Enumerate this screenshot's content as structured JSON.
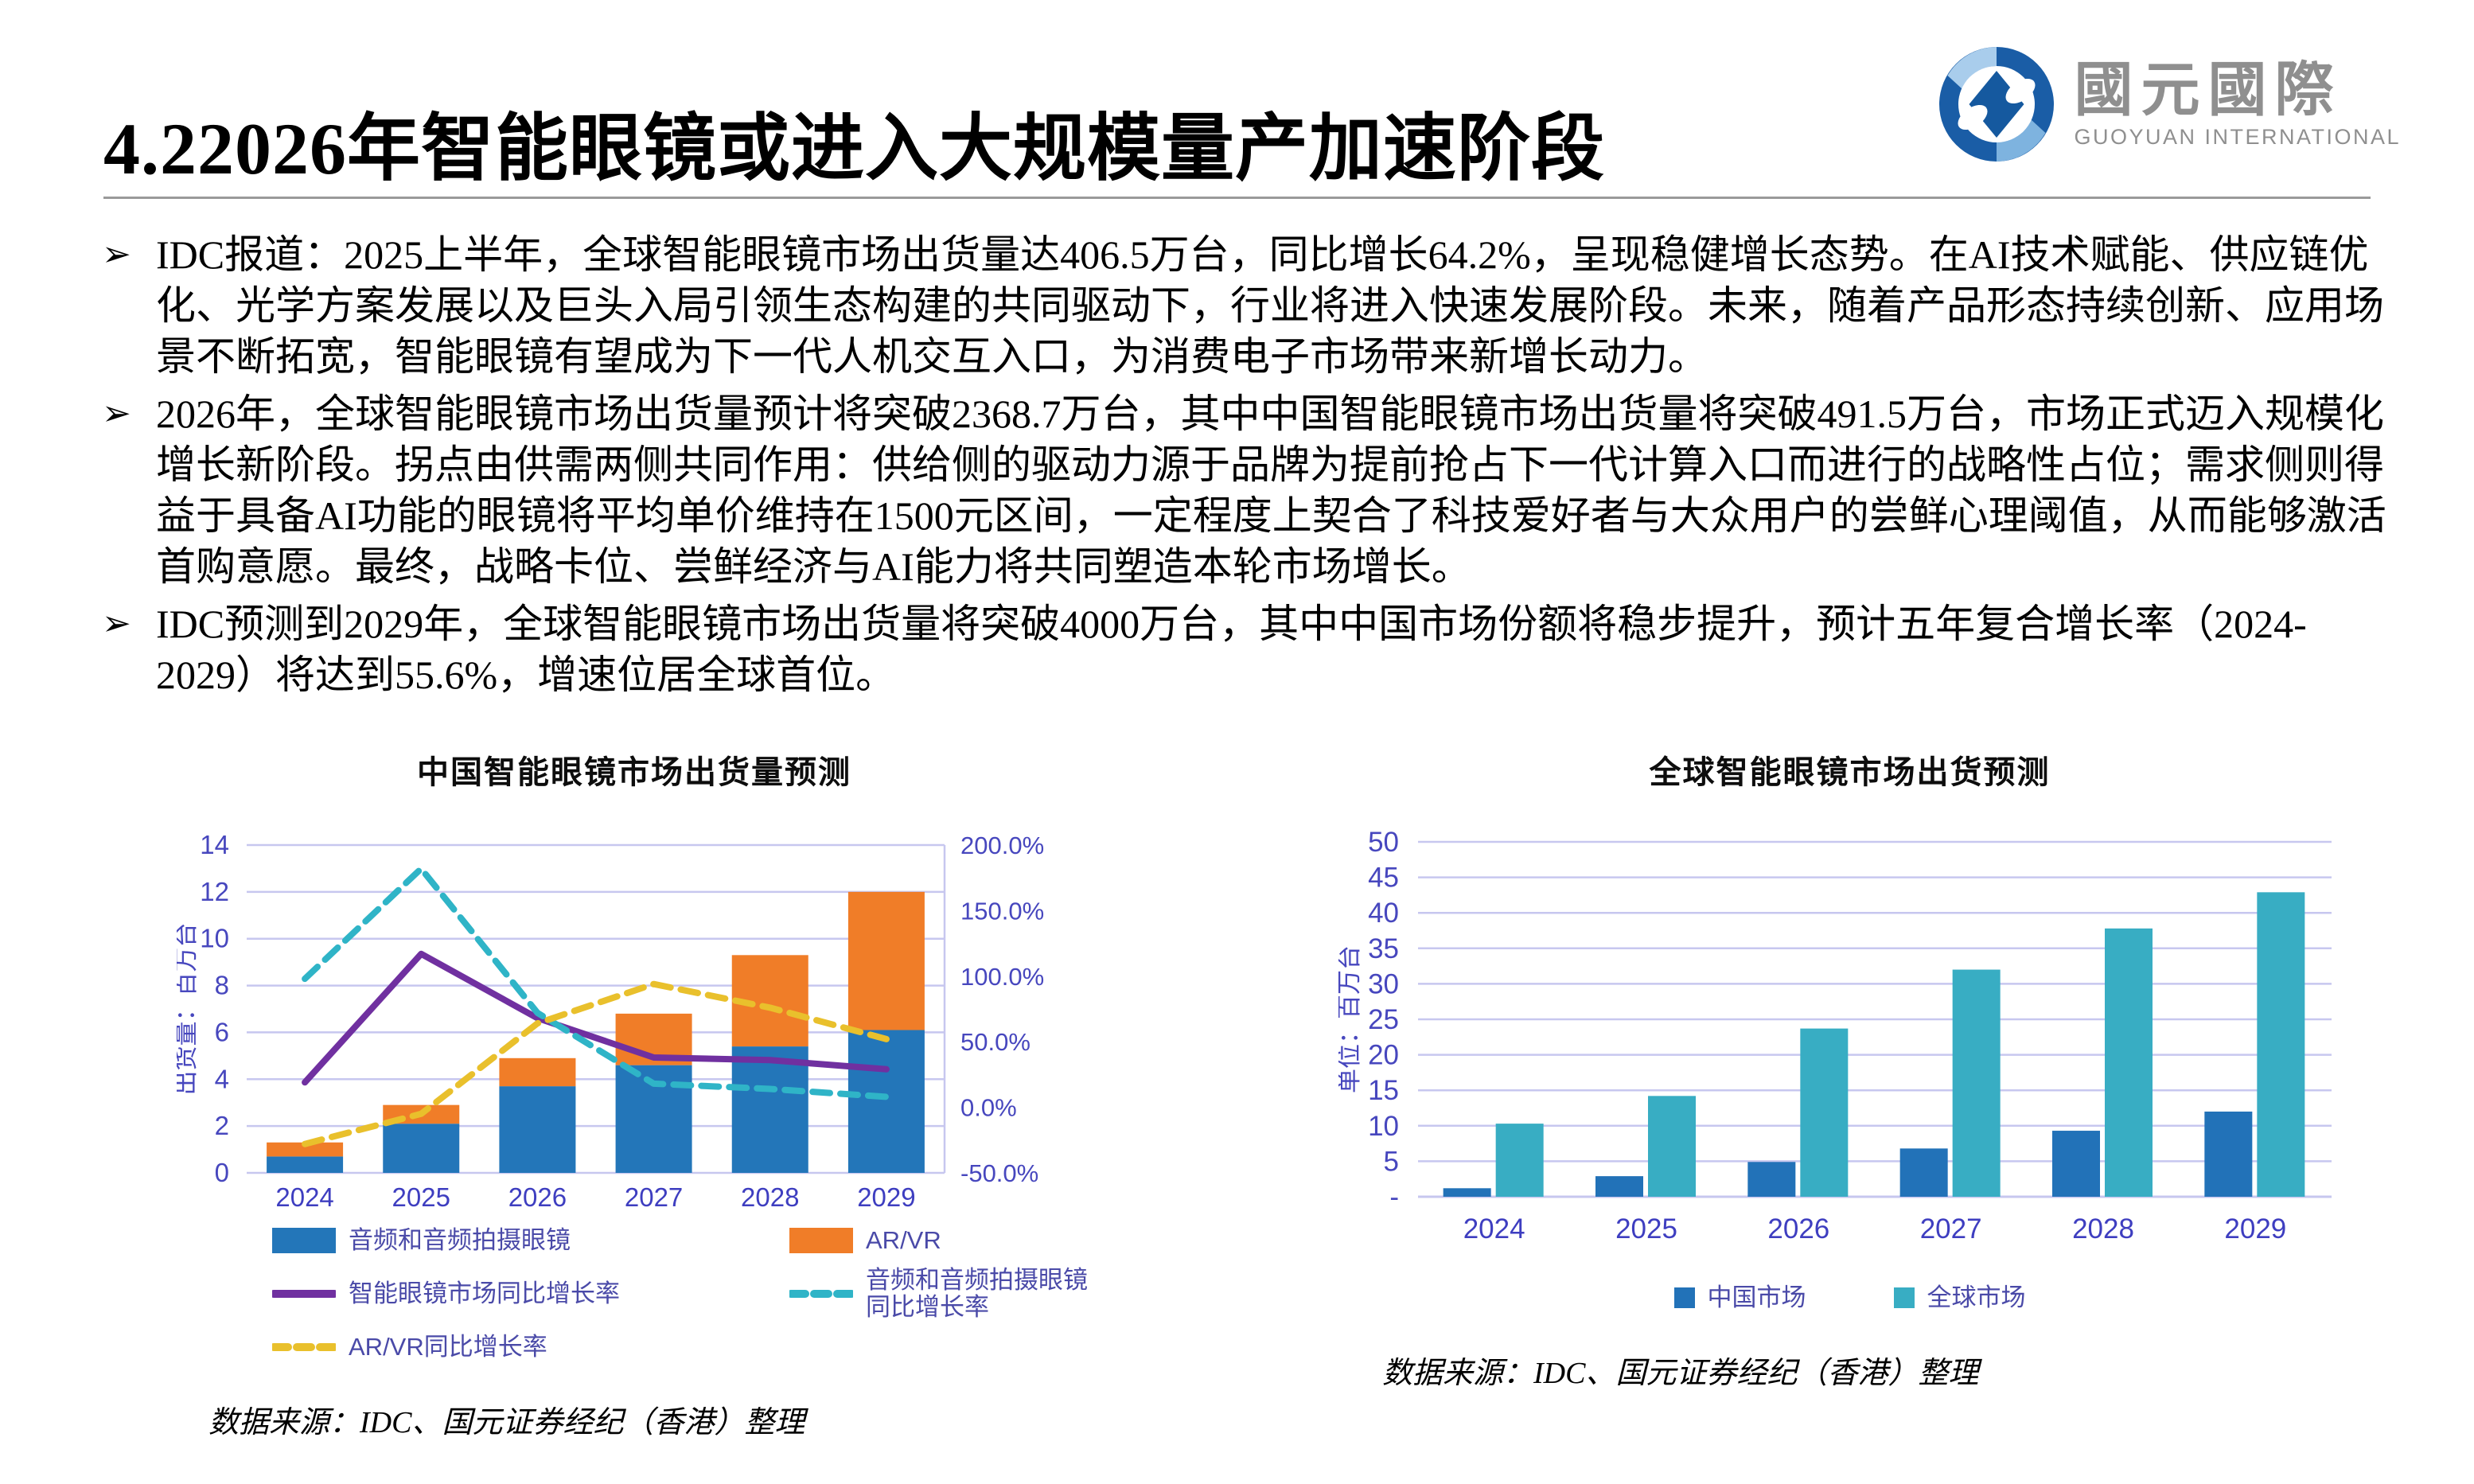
{
  "header": {
    "title": "4.22026年智能眼镜或进入大规模量产加速阶段",
    "logo_cn": "國元國際",
    "logo_en": "GUOYUAN INTERNATIONAL"
  },
  "bullet_marker": "➢",
  "bullets": [
    "IDC报道：2025上半年，全球智能眼镜市场出货量达406.5万台，同比增长64.2%，呈现稳健增长态势。在AI技术赋能、供应链优化、光学方案发展以及巨头入局引领生态构建的共同驱动下，行业将进入快速发展阶段。未来，随着产品形态持续创新、应用场景不断拓宽，智能眼镜有望成为下一代人机交互入口，为消费电子市场带来新增长动力。",
    "2026年，全球智能眼镜市场出货量预计将突破2368.7万台，其中中国智能眼镜市场出货量将突破491.5万台，市场正式迈入规模化增长新阶段。拐点由供需两侧共同作用：供给侧的驱动力源于品牌为提前抢占下一代计算入口而进行的战略性占位；需求侧则得益于具备AI功能的眼镜将平均单价维持在1500元区间，一定程度上契合了科技爱好者与大众用户的尝鲜心理阈值，从而能够激活首购意愿。最终，战略卡位、尝鲜经济与AI能力将共同塑造本轮市场增长。",
    "IDC预测到2029年，全球智能眼镜市场出货量将突破4000万台，其中中国市场份额将稳步提升，预计五年复合增长率（2024-2029）将达到55.6%，增速位居全球首位。"
  ],
  "sources": {
    "left": "数据来源：IDC、国元证券经纪（香港）整理",
    "right": "数据来源：IDC、国元证券经纪（香港）整理"
  },
  "colors": {
    "grid": "#c7c7ef",
    "tick_text": "#4747be",
    "year_text": "#3e3ec0",
    "legend_text": "#4a4aa8",
    "logo_dark_blue": "#1a5da6",
    "logo_light_blue": "#a9cdec",
    "logo_gray": "#8f8f8f"
  },
  "chart_data": [
    {
      "type": "bar",
      "subtype": "stacked-bars-with-growth-lines-dual-axis",
      "title": "中国智能眼镜市场出货量预测",
      "ylabel": "出货量：百万台",
      "categories": [
        "2024",
        "2025",
        "2026",
        "2027",
        "2028",
        "2029"
      ],
      "bar_series": [
        {
          "name": "音频和音频拍摄眼镜",
          "color": "#2376b9",
          "values": [
            0.7,
            2.1,
            3.7,
            4.6,
            5.4,
            6.1
          ]
        },
        {
          "name": "AR/VR",
          "color": "#f07d28",
          "values": [
            0.6,
            0.8,
            1.2,
            2.2,
            3.9,
            5.9
          ]
        }
      ],
      "line_series": [
        {
          "name": "智能眼镜市场同比增长率",
          "color": "#7030a0",
          "dash": false,
          "values_pct": [
            19,
            117,
            68,
            38,
            36,
            29
          ]
        },
        {
          "name": "音频和音频拍摄眼镜同比增长率",
          "color": "#2fb4c7",
          "dash": true,
          "values_pct": [
            98,
            182,
            72,
            18,
            14,
            8
          ]
        },
        {
          "name": "AR/VR同比增长率",
          "color": "#e9c02c",
          "dash": true,
          "values_pct": [
            -28,
            -5,
            64,
            94,
            76,
            52
          ]
        }
      ],
      "y_left": {
        "min": 0,
        "max": 14,
        "ticks": [
          0,
          2,
          4,
          6,
          8,
          10,
          12,
          14
        ]
      },
      "y_right": {
        "min": -50,
        "max": 200,
        "tick_labels": [
          "200.0%",
          "150.0%",
          "100.0%",
          "50.0%",
          "0.0%",
          "-50.0%"
        ]
      },
      "grid": true,
      "legend_position": "bottom"
    },
    {
      "type": "bar",
      "subtype": "grouped",
      "title": "全球智能眼镜市场出货预测",
      "ylabel": "单位：百万台",
      "categories": [
        "2024",
        "2025",
        "2026",
        "2027",
        "2028",
        "2029"
      ],
      "series": [
        {
          "name": "中国市场",
          "color": "#2272b8",
          "values": [
            1.2,
            2.9,
            4.9,
            6.8,
            9.3,
            12.0
          ]
        },
        {
          "name": "全球市场",
          "color": "#38adc3",
          "values": [
            10.3,
            14.2,
            23.7,
            32.0,
            37.8,
            42.9
          ]
        }
      ],
      "y_left": {
        "min": 0,
        "max": 50,
        "step": 5,
        "zero_label": "-"
      },
      "grid": true,
      "legend_position": "bottom"
    }
  ]
}
